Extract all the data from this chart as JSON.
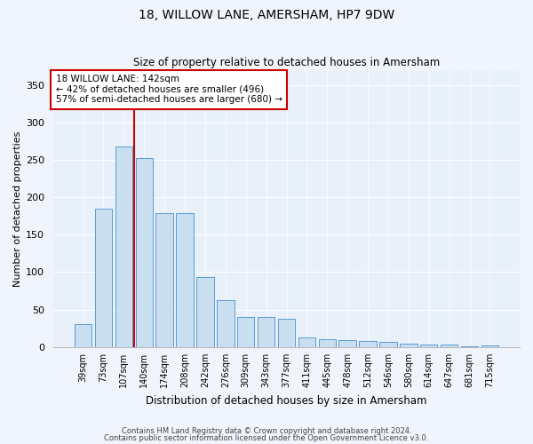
{
  "title1": "18, WILLOW LANE, AMERSHAM, HP7 9DW",
  "title2": "Size of property relative to detached houses in Amersham",
  "xlabel": "Distribution of detached houses by size in Amersham",
  "ylabel": "Number of detached properties",
  "categories": [
    "39sqm",
    "73sqm",
    "107sqm",
    "140sqm",
    "174sqm",
    "208sqm",
    "242sqm",
    "276sqm",
    "309sqm",
    "343sqm",
    "377sqm",
    "411sqm",
    "445sqm",
    "478sqm",
    "512sqm",
    "546sqm",
    "580sqm",
    "614sqm",
    "647sqm",
    "681sqm",
    "715sqm"
  ],
  "values": [
    30,
    185,
    268,
    253,
    179,
    179,
    93,
    63,
    40,
    40,
    38,
    13,
    10,
    9,
    8,
    7,
    4,
    3,
    3,
    1,
    2
  ],
  "bar_color": "#c9dff0",
  "bar_edge_color": "#5b9bd5",
  "property_line_x": 2.5,
  "property_line_label": "18 WILLOW LANE: 142sqm",
  "annotation_line1": "← 42% of detached houses are smaller (496)",
  "annotation_line2": "57% of semi-detached houses are larger (680) →",
  "annotation_box_facecolor": "#ffffff",
  "annotation_box_edgecolor": "#cc0000",
  "line_color": "#cc0000",
  "ylim": [
    0,
    370
  ],
  "yticks": [
    0,
    50,
    100,
    150,
    200,
    250,
    300,
    350
  ],
  "footnote1": "Contains HM Land Registry data © Crown copyright and database right 2024.",
  "footnote2": "Contains public sector information licensed under the Open Government Licence v3.0.",
  "fig_facecolor": "#f0f4fc",
  "plot_facecolor": "#e8f0fa",
  "grid_color": "#ffffff",
  "title1_fontsize": 10,
  "title2_fontsize": 8.5,
  "ylabel_fontsize": 8,
  "xlabel_fontsize": 8.5,
  "tick_fontsize": 7,
  "footnote_fontsize": 6,
  "ann_fontsize": 7.5
}
